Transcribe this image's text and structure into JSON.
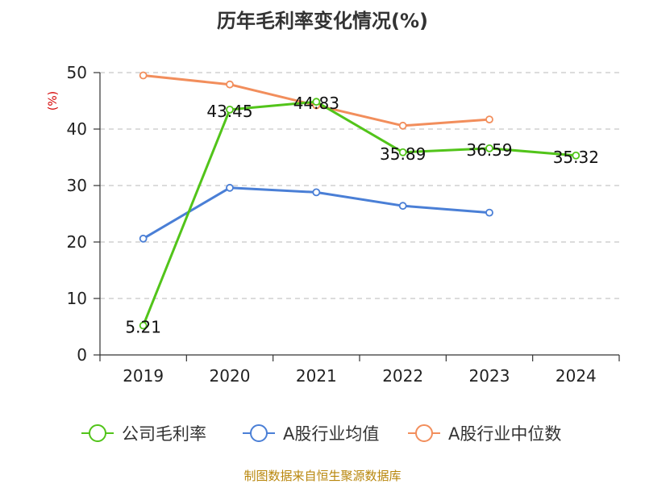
{
  "chart_data": {
    "type": "line",
    "title": "历年毛利率变化情况(%)",
    "ylabel": "(%)",
    "xlabel": "",
    "categories": [
      "2019",
      "2020",
      "2021",
      "2022",
      "2023",
      "2024"
    ],
    "ylim": [
      0,
      50
    ],
    "yticks": [
      0,
      10,
      20,
      30,
      40,
      50
    ],
    "grid": true,
    "legend_position": "bottom",
    "series": [
      {
        "name": "公司毛利率",
        "color": "#52c41a",
        "values": [
          5.21,
          43.45,
          44.83,
          35.89,
          36.59,
          35.32
        ],
        "labels": [
          "5.21",
          "43.45",
          "44.83",
          "35.89",
          "36.59",
          "35.32"
        ]
      },
      {
        "name": "A股行业均值",
        "color": "#4a7fd6",
        "values": [
          20.6,
          29.6,
          28.8,
          26.4,
          25.2,
          null
        ]
      },
      {
        "name": "A股行业中位数",
        "color": "#f28e5c",
        "values": [
          49.5,
          47.9,
          44.2,
          40.6,
          41.7,
          null
        ]
      }
    ]
  },
  "source": "制图数据来自恒生聚源数据库"
}
